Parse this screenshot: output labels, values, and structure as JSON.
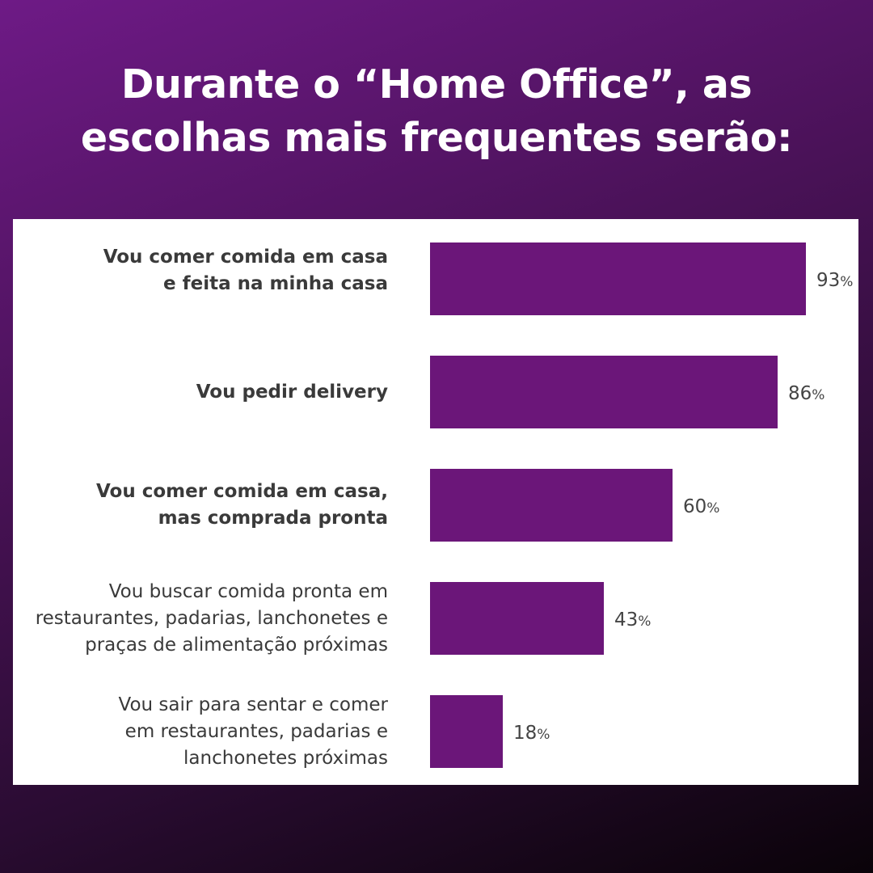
{
  "title": {
    "line1": "Durante o “Home Office”, as",
    "line2": "escolhas mais frequentes serão:"
  },
  "colors": {
    "background": "#4a1258",
    "bar": "#6b1679",
    "panel": "#ffffff",
    "label_text": "#3a3a3a"
  },
  "chart_data": {
    "type": "bar",
    "orientation": "horizontal",
    "title": "Durante o “Home Office”, as escolhas mais frequentes serão:",
    "value_suffix": "%",
    "xlim": [
      0,
      100
    ],
    "grid": false,
    "categories": [
      {
        "lines": [
          "Vou comer comida em casa",
          "e feita na minha casa"
        ],
        "bold": true
      },
      {
        "lines": [
          "Vou pedir delivery"
        ],
        "bold": true
      },
      {
        "lines": [
          "Vou comer comida em casa,",
          "mas comprada pronta"
        ],
        "bold": true
      },
      {
        "lines": [
          "Vou buscar comida pronta em",
          "restaurantes, padarias, lanchonetes e",
          "praças de alimentação próximas"
        ],
        "bold": false
      },
      {
        "lines": [
          "Vou sair para sentar e comer",
          "em restaurantes, padarias e",
          "lanchonetes próximas"
        ],
        "bold": false
      }
    ],
    "values": [
      93,
      86,
      60,
      43,
      18
    ],
    "value_labels": [
      "93",
      "86",
      "60",
      "43",
      "18"
    ]
  }
}
